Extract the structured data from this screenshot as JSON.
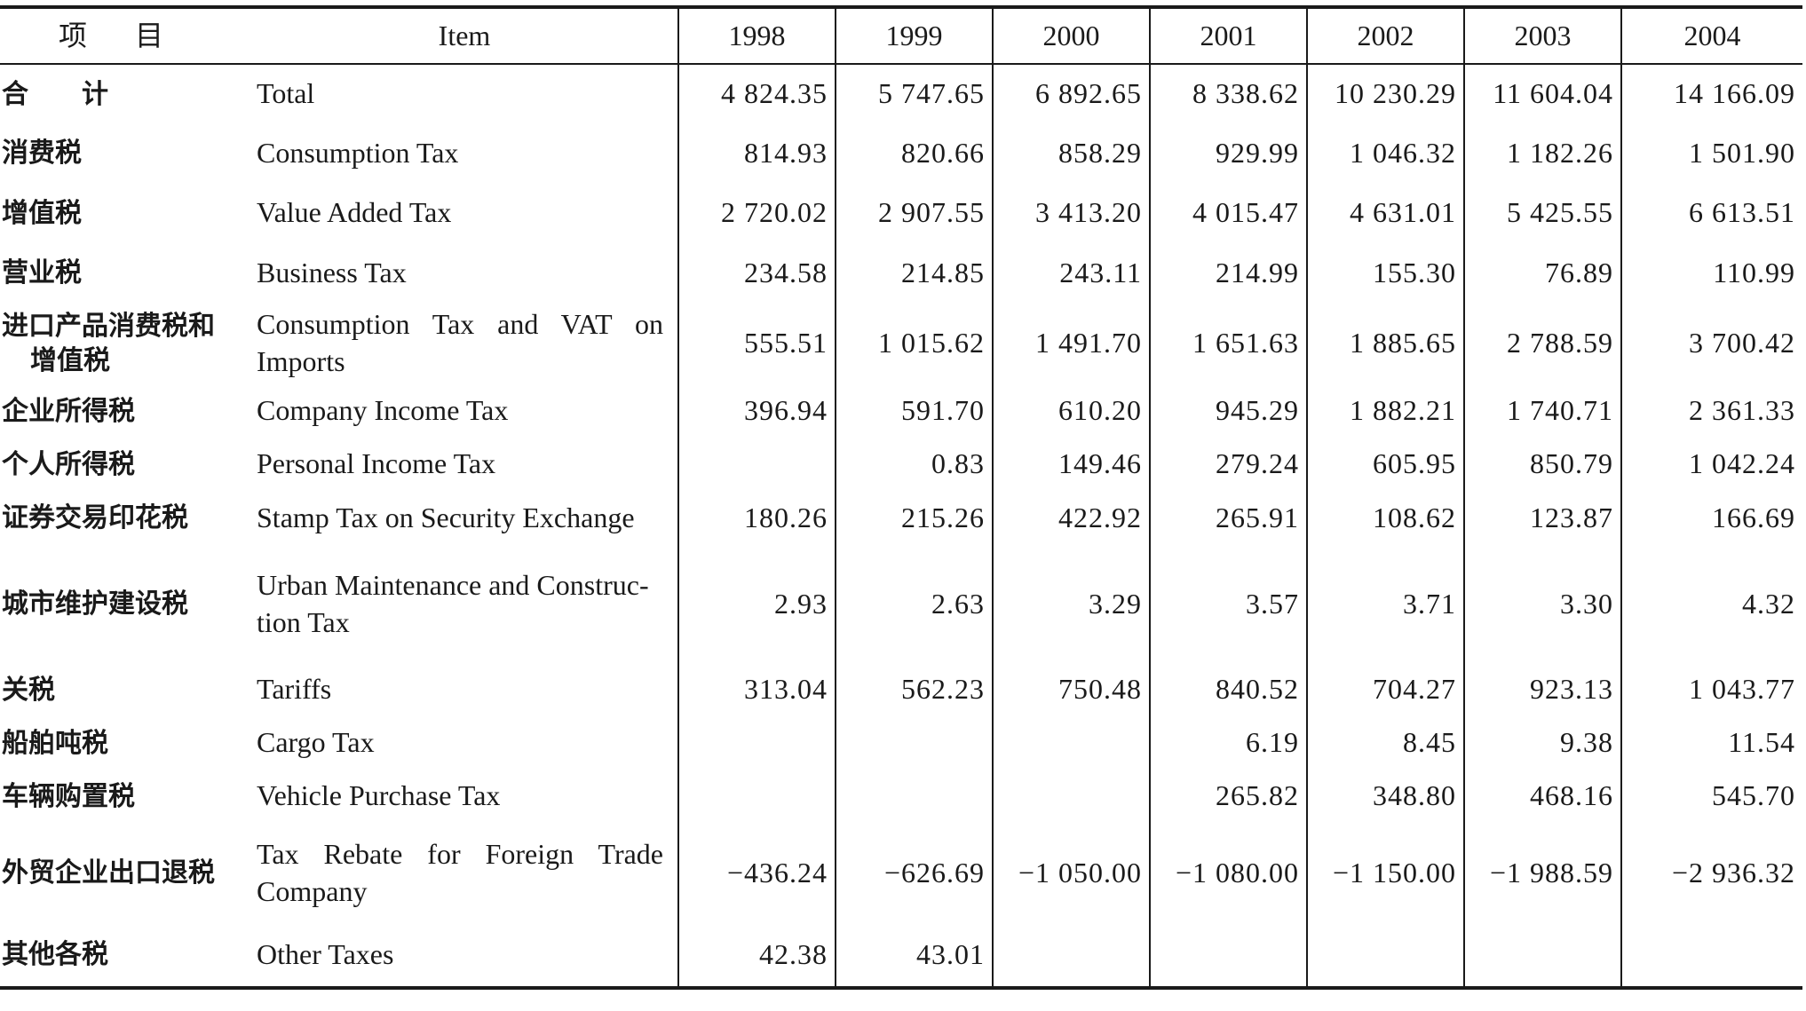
{
  "header": {
    "cn_label_1": "项",
    "cn_label_2": "目",
    "en_label": "Item",
    "years": [
      "1998",
      "1999",
      "2000",
      "2001",
      "2002",
      "2003",
      "2004"
    ]
  },
  "rows": [
    {
      "cn": "合计",
      "en": "Total",
      "values": [
        "4 824.35",
        "5 747.65",
        "6 892.65",
        "8 338.62",
        "10 230.29",
        "11 604.04",
        "14 166.09"
      ]
    },
    {
      "cn": "消费税",
      "en": "Consumption Tax",
      "values": [
        "814.93",
        "820.66",
        "858.29",
        "929.99",
        "1 046.32",
        "1 182.26",
        "1 501.90"
      ]
    },
    {
      "cn": "增值税",
      "en": "Value Added Tax",
      "values": [
        "2 720.02",
        "2 907.55",
        "3 413.20",
        "4 015.47",
        "4 631.01",
        "5 425.55",
        "6 613.51"
      ]
    },
    {
      "cn": "营业税",
      "en": "Business Tax",
      "values": [
        "234.58",
        "214.85",
        "243.11",
        "214.99",
        "155.30",
        "76.89",
        "110.99"
      ]
    },
    {
      "cn_line1": "进口产品消费税和",
      "cn_line2": "增值税",
      "en": "Consumption Tax and VAT on Imports",
      "values": [
        "555.51",
        "1 015.62",
        "1 491.70",
        "1 651.63",
        "1 885.65",
        "2 788.59",
        "3 700.42"
      ]
    },
    {
      "cn": "企业所得税",
      "en": "Company Income Tax",
      "values": [
        "396.94",
        "591.70",
        "610.20",
        "945.29",
        "1 882.21",
        "1 740.71",
        "2 361.33"
      ]
    },
    {
      "cn": "个人所得税",
      "en": "Personal Income Tax",
      "values": [
        "",
        "0.83",
        "149.46",
        "279.24",
        "605.95",
        "850.79",
        "1 042.24"
      ]
    },
    {
      "cn": "证券交易印花税",
      "en": "Stamp Tax on Security Exchange",
      "values": [
        "180.26",
        "215.26",
        "422.92",
        "265.91",
        "108.62",
        "123.87",
        "166.69"
      ]
    },
    {
      "cn": "城市维护建设税",
      "en": "Urban Maintenance and Construction Tax",
      "en_line1": "Urban Maintenance and Construc-",
      "en_line2": "tion Tax",
      "values": [
        "2.93",
        "2.63",
        "3.29",
        "3.57",
        "3.71",
        "3.30",
        "4.32"
      ]
    },
    {
      "cn": "关税",
      "en": "Tariffs",
      "values": [
        "313.04",
        "562.23",
        "750.48",
        "840.52",
        "704.27",
        "923.13",
        "1 043.77"
      ]
    },
    {
      "cn": "船舶吨税",
      "en": "Cargo Tax",
      "values": [
        "",
        "",
        "",
        "6.19",
        "8.45",
        "9.38",
        "11.54"
      ]
    },
    {
      "cn": "车辆购置税",
      "en": "Vehicle Purchase Tax",
      "values": [
        "",
        "",
        "",
        "265.82",
        "348.80",
        "468.16",
        "545.70"
      ]
    },
    {
      "cn": "外贸企业出口退税",
      "en": "Tax Rebate for Foreign Trade Company",
      "values": [
        "−436.24",
        "−626.69",
        "−1 050.00",
        "−1 080.00",
        "−1 150.00",
        "−1 988.59",
        "−2 936.32"
      ]
    },
    {
      "cn": "其他各税",
      "en": "Other Taxes",
      "values": [
        "42.38",
        "43.01",
        "",
        "",
        "",
        "",
        ""
      ]
    }
  ]
}
